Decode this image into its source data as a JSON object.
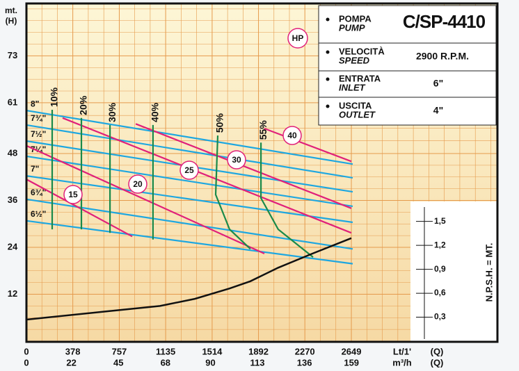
{
  "chart_data": {
    "type": "line",
    "y_axis_label": "mt.",
    "y_axis_unit": "(H)",
    "x_axis_label": "Lt/1'",
    "x_axis_unit": "(Q)",
    "x2_axis_label": "m³/h",
    "x2_axis_unit": "(Q)",
    "y2_axis_label": "N.P.S.H. = MT.",
    "power_unit_label": "HP",
    "xlim": [
      0,
      3840
    ],
    "xticks": [
      0,
      378,
      757,
      1135,
      1514,
      1892,
      2270,
      2649
    ],
    "x2lim": [
      0,
      230.4
    ],
    "x2ticks": [
      0,
      22,
      45,
      68,
      90,
      113,
      136,
      159
    ],
    "ylim": [
      0,
      86.4
    ],
    "yticks": [
      12,
      24,
      36,
      48,
      61,
      73
    ],
    "y2lim": [
      0,
      4.23
    ],
    "y2ticks": [
      {
        "value": 0.3,
        "label": "0,3"
      },
      {
        "value": 0.6,
        "label": "0,6"
      },
      {
        "value": 0.9,
        "label": "0,9"
      },
      {
        "value": 1.2,
        "label": "1,2"
      },
      {
        "value": 1.5,
        "label": "1,5"
      }
    ],
    "grid": true,
    "spec": [
      {
        "label": "POMPA",
        "label_en": "PUMP",
        "value": "C/SP-4410"
      },
      {
        "label": "VELOCITÀ",
        "label_en": "SPEED",
        "value": "2900 R.P.M."
      },
      {
        "label": "ENTRATA",
        "label_en": "INLET",
        "value": "6\""
      },
      {
        "label": "USCITA",
        "label_en": "OUTLET",
        "value": "4\""
      }
    ],
    "impeller_curves": [
      {
        "name": "8\"",
        "color": "#1ea7e0",
        "x": [
          0,
          2660
        ],
        "values": [
          59.0,
          45.3
        ]
      },
      {
        "name": "7¾\"",
        "color": "#1ea7e0",
        "x": [
          0,
          2660
        ],
        "values": [
          55.3,
          41.8
        ]
      },
      {
        "name": "7½\"",
        "color": "#1ea7e0",
        "x": [
          0,
          2660
        ],
        "values": [
          51.2,
          38.2
        ]
      },
      {
        "name": "7¼\"",
        "color": "#1ea7e0",
        "x": [
          0,
          2660
        ],
        "values": [
          47.3,
          34.5
        ]
      },
      {
        "name": "7\"",
        "color": "#1ea7e0",
        "x": [
          0,
          2660
        ],
        "values": [
          42.3,
          30.4
        ]
      },
      {
        "name": "6¾\"",
        "color": "#1ea7e0",
        "x": [
          0,
          2660
        ],
        "values": [
          36.3,
          23.6
        ]
      },
      {
        "name": "6½\"",
        "color": "#1ea7e0",
        "x": [
          0,
          2660
        ],
        "values": [
          30.8,
          19.8
        ]
      }
    ],
    "efficiency_curves": [
      {
        "name": "10%",
        "color": "#1a8a4a",
        "x": [
          210,
          210
        ],
        "values": [
          59.2,
          28.6
        ]
      },
      {
        "name": "20%",
        "color": "#1a8a4a",
        "x": [
          448,
          448
        ],
        "values": [
          57.1,
          28.6
        ]
      },
      {
        "name": "30%",
        "color": "#1a8a4a",
        "x": [
          681,
          681
        ],
        "values": [
          55.3,
          27.7
        ]
      },
      {
        "name": "40%",
        "color": "#1a8a4a",
        "x": [
          1032,
          1032
        ],
        "values": [
          55.3,
          26.0
        ]
      },
      {
        "name": "50%",
        "color": "#1a8a4a",
        "x": [
          1560,
          1543,
          1656,
          1826
        ],
        "values": [
          52.6,
          37.5,
          28.6,
          23.6
        ]
      },
      {
        "name": "55%",
        "color": "#1a8a4a",
        "x": [
          1912,
          1912,
          2053,
          2337
        ],
        "values": [
          50.8,
          36.6,
          28.6,
          21.5
        ]
      }
    ],
    "power_curves": [
      {
        "name": "15",
        "color": "#e0207a",
        "x": [
          0,
          862
        ],
        "values": [
          41.4,
          26.8
        ]
      },
      {
        "name": "20",
        "color": "#e0207a",
        "x": [
          0,
          1940
        ],
        "values": [
          50.0,
          22.4
        ]
      },
      {
        "name": "25",
        "color": "#e0207a",
        "x": [
          295,
          2649
        ],
        "values": [
          57.1,
          27.7
        ]
      },
      {
        "name": "30",
        "color": "#e0207a",
        "x": [
          891,
          2649
        ],
        "values": [
          55.6,
          34.0
        ]
      },
      {
        "name": "40",
        "color": "#e0207a",
        "x": [
          1940,
          2649
        ],
        "values": [
          54.4,
          46.0
        ]
      }
    ],
    "npsh_curve": {
      "color": "#111111",
      "axis": "y2",
      "x": [
        0,
        635,
        1089,
        1373,
        1656,
        1826,
        2053,
        2337,
        2649
      ],
      "values": [
        0.27,
        0.37,
        0.44,
        0.53,
        0.66,
        0.75,
        0.92,
        1.1,
        1.29
      ]
    }
  }
}
